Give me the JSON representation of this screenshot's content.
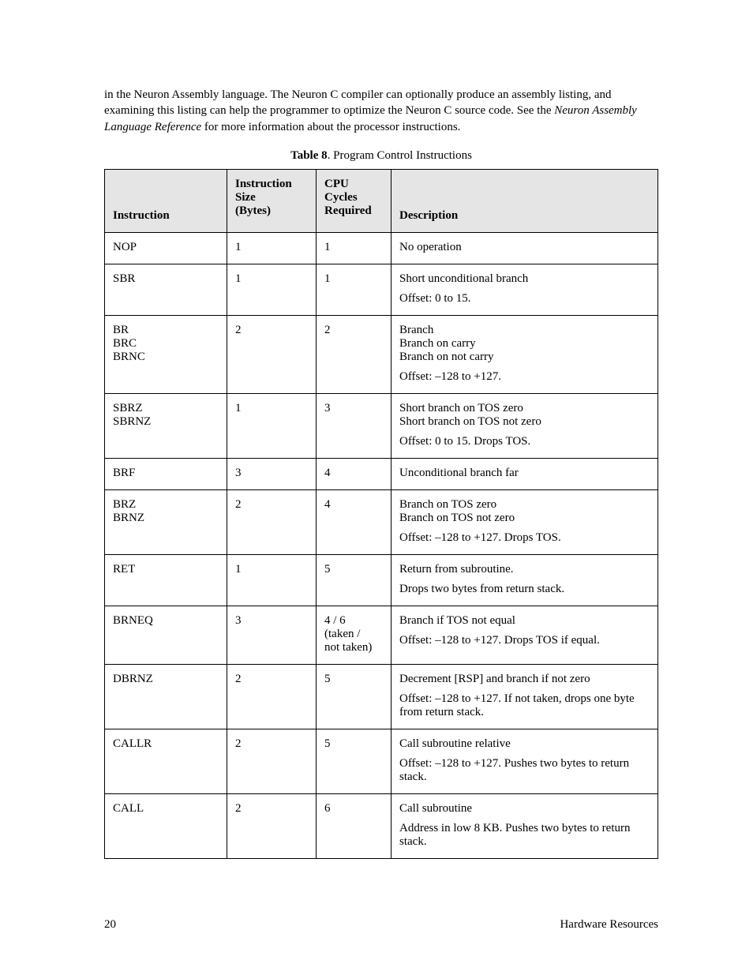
{
  "intro": {
    "part1": "in the Neuron Assembly language.  The Neuron C compiler can optionally produce an assembly listing, and examining this listing can help the programmer to optimize the Neuron C source code.  See the ",
    "italic": "Neuron Assembly Language Reference",
    "part2": " for more information about the processor instructions."
  },
  "caption": {
    "bold": "Table 8",
    "rest": ". Program Control Instructions"
  },
  "headers": {
    "c1": "Instruction",
    "c2_l1": "Instruction",
    "c2_l2": "Size",
    "c2_l3": "(Bytes)",
    "c3_l1": "CPU",
    "c3_l2": "Cycles",
    "c3_l3": "Required",
    "c4": "Description"
  },
  "rows": [
    {
      "instr": [
        "NOP"
      ],
      "size": "1",
      "cycles": [
        "1"
      ],
      "desc": [
        "No operation"
      ]
    },
    {
      "instr": [
        "SBR"
      ],
      "size": "1",
      "cycles": [
        "1"
      ],
      "desc": [
        "Short unconditional branch",
        "Offset:  0 to 15."
      ]
    },
    {
      "instr": [
        "BR",
        "BRC",
        "BRNC"
      ],
      "size": "2",
      "cycles": [
        "2"
      ],
      "desc": [
        "Branch\nBranch on carry\nBranch on not carry",
        "Offset:  –128 to +127."
      ]
    },
    {
      "instr": [
        "SBRZ",
        "SBRNZ"
      ],
      "size": "1",
      "cycles": [
        "3"
      ],
      "desc": [
        "Short branch on TOS zero\nShort branch on TOS not zero",
        "Offset:  0 to 15.  Drops TOS."
      ]
    },
    {
      "instr": [
        "BRF"
      ],
      "size": "3",
      "cycles": [
        "4"
      ],
      "desc": [
        "Unconditional branch far"
      ]
    },
    {
      "instr": [
        "BRZ",
        "BRNZ"
      ],
      "size": "2",
      "cycles": [
        "4"
      ],
      "desc": [
        "Branch on TOS zero\nBranch on TOS not zero",
        "Offset:  –128 to +127.  Drops TOS."
      ]
    },
    {
      "instr": [
        "RET"
      ],
      "size": "1",
      "cycles": [
        "5"
      ],
      "desc": [
        "Return from subroutine.",
        "Drops two bytes from return stack."
      ]
    },
    {
      "instr": [
        "BRNEQ"
      ],
      "size": "3",
      "cycles": [
        "4 / 6",
        "(taken /",
        "not taken)"
      ],
      "desc": [
        "Branch if TOS not equal",
        "Offset:  –128 to +127.  Drops TOS if equal."
      ]
    },
    {
      "instr": [
        "DBRNZ"
      ],
      "size": "2",
      "cycles": [
        "5"
      ],
      "desc": [
        "Decrement [RSP] and branch if not zero",
        "Offset:  –128 to +127.  If not taken, drops one byte from return stack."
      ]
    },
    {
      "instr": [
        "CALLR"
      ],
      "size": "2",
      "cycles": [
        "5"
      ],
      "desc": [
        "Call subroutine relative",
        "Offset:  –128 to +127.  Pushes two bytes to return stack."
      ]
    },
    {
      "instr": [
        "CALL"
      ],
      "size": "2",
      "cycles": [
        "6"
      ],
      "desc": [
        "Call subroutine",
        "Address in low 8 KB.  Pushes two bytes to return stack."
      ]
    }
  ],
  "footer": {
    "page": "20",
    "section": "Hardware Resources"
  },
  "colors": {
    "header_bg": "#e5e5e5",
    "border": "#000000",
    "text": "#000000",
    "background": "#ffffff"
  }
}
